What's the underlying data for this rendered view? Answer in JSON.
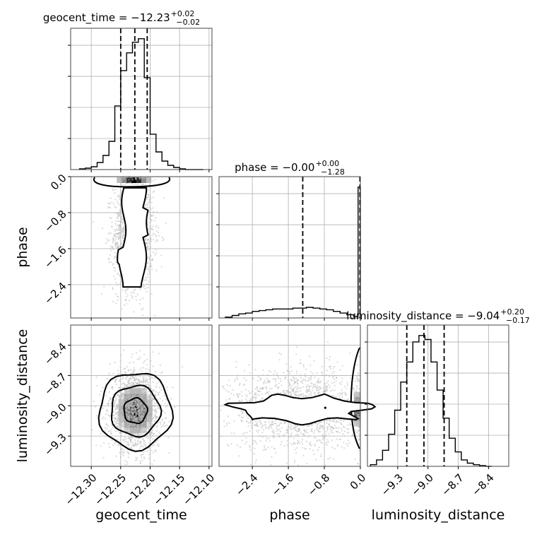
{
  "chart_data": {
    "type": "corner",
    "parameters": [
      "geocent_time",
      "phase",
      "luminosity_distance"
    ],
    "axis_labels": {
      "x": [
        "geocent_time",
        "phase",
        "luminosity_distance"
      ],
      "y": [
        "phase",
        "luminosity_distance"
      ]
    },
    "titles": [
      {
        "param": "geocent_time",
        "text": "geocent_time = −12.23",
        "sup": "+0.02",
        "sub": "−0.02"
      },
      {
        "param": "phase",
        "text": "phase = −0.00",
        "sup": "+0.00",
        "sub": "−1.28"
      },
      {
        "param": "luminosity_distance",
        "text": "luminosity_distance = −9.04",
        "sup": "+0.20",
        "sub": "−0.17"
      }
    ],
    "ranges": {
      "geocent_time": [
        -12.335,
        -12.095
      ],
      "phase": [
        -3.14,
        0.0
      ],
      "luminosity_distance": [
        -9.6,
        -8.2
      ]
    },
    "ticks": {
      "geocent_time": {
        "values": [
          -12.3,
          -12.25,
          -12.2,
          -12.15,
          -12.1
        ],
        "labels": [
          "−12.30",
          "−12.25",
          "−12.20",
          "−12.15",
          "−12.10"
        ]
      },
      "phase": {
        "values": [
          -2.4,
          -1.6,
          -0.8,
          0.0
        ],
        "labels": [
          "−2.4",
          "−1.6",
          "−0.8",
          "0.0"
        ]
      },
      "luminosity_distance": {
        "values": [
          -9.3,
          -9.0,
          -8.7,
          -8.4
        ],
        "labels": [
          "−9.3",
          "−9.0",
          "−8.7",
          "−8.4"
        ]
      }
    },
    "quantiles": {
      "geocent_time": [
        -12.25,
        -12.226,
        -12.205
      ],
      "phase": [
        -1.28,
        0.0,
        0.0
      ],
      "luminosity_distance": [
        -9.21,
        -9.04,
        -8.84
      ]
    },
    "histograms": {
      "geocent_time": {
        "bin_edges": [
          -12.32,
          -12.31,
          -12.3,
          -12.29,
          -12.28,
          -12.27,
          -12.26,
          -12.25,
          -12.24,
          -12.23,
          -12.22,
          -12.21,
          -12.2,
          -12.19,
          -12.18,
          -12.17,
          -12.16,
          -12.15,
          -12.14,
          -12.13,
          -12.12,
          -12.11
        ],
        "counts": [
          1,
          2,
          4,
          10,
          20,
          40,
          90,
          140,
          165,
          180,
          185,
          130,
          50,
          25,
          12,
          6,
          3,
          1,
          0,
          0,
          0
        ]
      },
      "phase": {
        "bin_edges": [
          -3.0,
          -2.85,
          -2.7,
          -2.55,
          -2.4,
          -2.25,
          -2.1,
          -1.95,
          -1.8,
          -1.65,
          -1.5,
          -1.35,
          -1.2,
          -1.05,
          -0.9,
          -0.75,
          -0.6,
          -0.45,
          -0.3,
          -0.15,
          -0.05,
          0.0
        ],
        "counts": [
          1,
          3,
          5,
          6,
          8,
          9,
          10,
          11,
          11,
          11,
          12,
          12,
          13,
          12,
          11,
          10,
          8,
          6,
          4,
          2,
          160
        ]
      },
      "luminosity_distance": {
        "bin_edges": [
          -9.57,
          -9.51,
          -9.45,
          -9.39,
          -9.33,
          -9.27,
          -9.21,
          -9.15,
          -9.09,
          -9.03,
          -8.97,
          -8.91,
          -8.85,
          -8.79,
          -8.73,
          -8.67,
          -8.61,
          -8.55,
          -8.49,
          -8.43,
          -8.37
        ],
        "counts": [
          2,
          8,
          20,
          40,
          70,
          105,
          130,
          155,
          163,
          158,
          130,
          95,
          60,
          35,
          18,
          8,
          4,
          2,
          1,
          0
        ]
      }
    },
    "joint_2d": [
      {
        "x": "geocent_time",
        "y": "phase",
        "center": [
          -12.228,
          -1.3
        ],
        "spread": [
          0.017,
          0.62
        ],
        "peak": [
          -12.228,
          0.0
        ]
      },
      {
        "x": "geocent_time",
        "y": "luminosity_distance",
        "center": [
          -12.225,
          -9.05
        ],
        "spread": [
          0.022,
          0.2
        ]
      },
      {
        "x": "phase",
        "y": "luminosity_distance",
        "center": [
          -1.3,
          -9.03
        ],
        "spread": [
          0.8,
          0.2
        ],
        "peak": [
          0.0,
          -9.03
        ]
      }
    ],
    "grid": true,
    "color": "#000000",
    "scatter_color": "#bbbbbb"
  }
}
